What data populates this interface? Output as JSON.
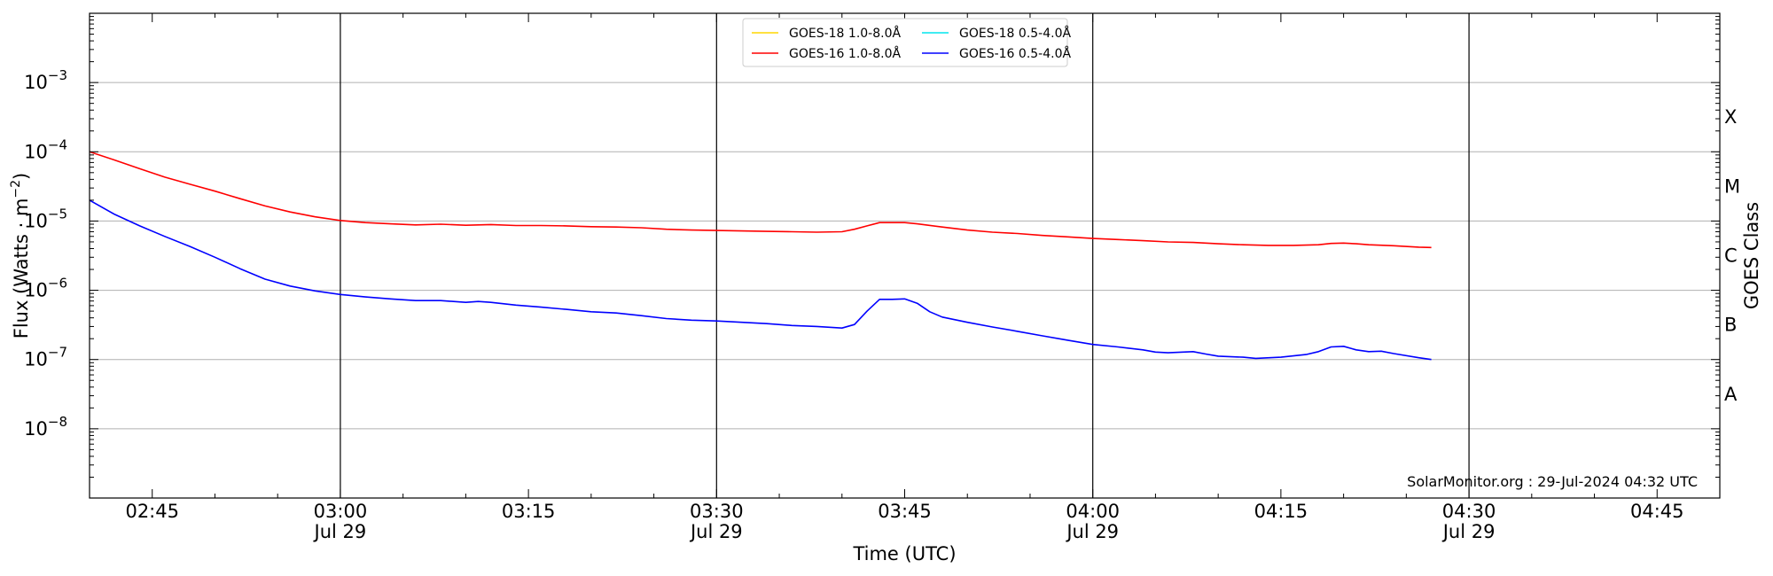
{
  "chart_data": {
    "type": "line",
    "xlabel": "Time (UTC)",
    "ylabel": "Flux (Watts · m",
    "ylabel_sup": "−2",
    "ylabel_close": ")",
    "right_label": "GOES Class",
    "footer": "SolarMonitor.org : 29-Jul-2024 04:32 UTC",
    "y_scale": "log",
    "ylim": [
      1e-09,
      0.01
    ],
    "xlim": [
      "02:40",
      "04:50"
    ],
    "grid": "horizontal",
    "legend_position": "top-center",
    "x_ticks": [
      {
        "time": "02:45",
        "label": "02:45",
        "date": ""
      },
      {
        "time": "03:00",
        "label": "03:00",
        "date": "Jul 29"
      },
      {
        "time": "03:15",
        "label": "03:15",
        "date": ""
      },
      {
        "time": "03:30",
        "label": "03:30",
        "date": "Jul 29"
      },
      {
        "time": "03:45",
        "label": "03:45",
        "date": ""
      },
      {
        "time": "04:00",
        "label": "04:00",
        "date": "Jul 29"
      },
      {
        "time": "04:15",
        "label": "04:15",
        "date": ""
      },
      {
        "time": "04:30",
        "label": "04:30",
        "date": "Jul 29"
      },
      {
        "time": "04:45",
        "label": "04:45",
        "date": ""
      }
    ],
    "vertical_lines": [
      "03:00",
      "03:30",
      "04:00",
      "04:30"
    ],
    "y_ticks": [
      {
        "value": 1e-08,
        "base": "10",
        "exp": "−8"
      },
      {
        "value": 1e-07,
        "base": "10",
        "exp": "−7"
      },
      {
        "value": 1e-06,
        "base": "10",
        "exp": "−6"
      },
      {
        "value": 1e-05,
        "base": "10",
        "exp": "−5"
      },
      {
        "value": 0.0001,
        "base": "10",
        "exp": "−4"
      },
      {
        "value": 0.001,
        "base": "10",
        "exp": "−3"
      }
    ],
    "goes_classes": [
      {
        "label": "A",
        "value": 3.16e-08
      },
      {
        "label": "B",
        "value": 3.16e-07
      },
      {
        "label": "C",
        "value": 3.16e-06
      },
      {
        "label": "M",
        "value": 3.16e-05
      },
      {
        "label": "X",
        "value": 0.000316
      }
    ],
    "legend_entries": [
      {
        "name": "GOES-18 1.0-8.0Å",
        "color": "#ffd700"
      },
      {
        "name": "GOES-18 0.5-4.0Å",
        "color": "#00e5ee"
      },
      {
        "name": "GOES-16 1.0-8.0Å",
        "color": "#ff0000"
      },
      {
        "name": "GOES-16 0.5-4.0Å",
        "color": "#0000ff"
      }
    ],
    "series": [
      {
        "name": "GOES-16 1.0-8.0Å",
        "color": "#ff0000",
        "points": [
          [
            "02:40",
            0.0001
          ],
          [
            "02:42",
            7.6e-05
          ],
          [
            "02:44",
            5.7e-05
          ],
          [
            "02:46",
            4.3e-05
          ],
          [
            "02:48",
            3.4e-05
          ],
          [
            "02:50",
            2.7e-05
          ],
          [
            "02:52",
            2.1e-05
          ],
          [
            "02:54",
            1.65e-05
          ],
          [
            "02:56",
            1.35e-05
          ],
          [
            "02:58",
            1.15e-05
          ],
          [
            "03:00",
            1.02e-05
          ],
          [
            "03:02",
            9.5e-06
          ],
          [
            "03:04",
            9.1e-06
          ],
          [
            "03:06",
            8.8e-06
          ],
          [
            "03:08",
            9e-06
          ],
          [
            "03:10",
            8.7e-06
          ],
          [
            "03:12",
            8.9e-06
          ],
          [
            "03:14",
            8.6e-06
          ],
          [
            "03:16",
            8.6e-06
          ],
          [
            "03:18",
            8.5e-06
          ],
          [
            "03:20",
            8.3e-06
          ],
          [
            "03:22",
            8.2e-06
          ],
          [
            "03:24",
            8e-06
          ],
          [
            "03:26",
            7.6e-06
          ],
          [
            "03:28",
            7.4e-06
          ],
          [
            "03:30",
            7.3e-06
          ],
          [
            "03:32",
            7.2e-06
          ],
          [
            "03:34",
            7.1e-06
          ],
          [
            "03:36",
            7e-06
          ],
          [
            "03:38",
            6.9e-06
          ],
          [
            "03:40",
            7e-06
          ],
          [
            "03:41",
            7.6e-06
          ],
          [
            "03:42",
            8.5e-06
          ],
          [
            "03:43",
            9.5e-06
          ],
          [
            "03:45",
            9.5e-06
          ],
          [
            "03:46",
            9.1e-06
          ],
          [
            "03:48",
            8.2e-06
          ],
          [
            "03:50",
            7.4e-06
          ],
          [
            "03:52",
            6.9e-06
          ],
          [
            "03:54",
            6.6e-06
          ],
          [
            "03:56",
            6.2e-06
          ],
          [
            "03:58",
            5.9e-06
          ],
          [
            "04:00",
            5.6e-06
          ],
          [
            "04:02",
            5.4e-06
          ],
          [
            "04:04",
            5.2e-06
          ],
          [
            "04:06",
            5e-06
          ],
          [
            "04:08",
            4.9e-06
          ],
          [
            "04:10",
            4.7e-06
          ],
          [
            "04:12",
            4.55e-06
          ],
          [
            "04:14",
            4.45e-06
          ],
          [
            "04:16",
            4.45e-06
          ],
          [
            "04:18",
            4.55e-06
          ],
          [
            "04:19",
            4.75e-06
          ],
          [
            "04:20",
            4.8e-06
          ],
          [
            "04:21",
            4.7e-06
          ],
          [
            "04:22",
            4.55e-06
          ],
          [
            "04:24",
            4.4e-06
          ],
          [
            "04:26",
            4.2e-06
          ],
          [
            "04:27",
            4.15e-06
          ]
        ]
      },
      {
        "name": "GOES-16 0.5-4.0Å",
        "color": "#0000ff",
        "points": [
          [
            "02:40",
            2e-05
          ],
          [
            "02:42",
            1.25e-05
          ],
          [
            "02:44",
            8.5e-06
          ],
          [
            "02:46",
            6e-06
          ],
          [
            "02:48",
            4.3e-06
          ],
          [
            "02:50",
            3e-06
          ],
          [
            "02:52",
            2.05e-06
          ],
          [
            "02:54",
            1.45e-06
          ],
          [
            "02:56",
            1.15e-06
          ],
          [
            "02:58",
            9.8e-07
          ],
          [
            "03:00",
            8.7e-07
          ],
          [
            "03:02",
            8e-07
          ],
          [
            "03:04",
            7.5e-07
          ],
          [
            "03:06",
            7.1e-07
          ],
          [
            "03:08",
            7.1e-07
          ],
          [
            "03:10",
            6.7e-07
          ],
          [
            "03:11",
            6.9e-07
          ],
          [
            "03:12",
            6.7e-07
          ],
          [
            "03:14",
            6.1e-07
          ],
          [
            "03:16",
            5.7e-07
          ],
          [
            "03:18",
            5.3e-07
          ],
          [
            "03:20",
            4.9e-07
          ],
          [
            "03:22",
            4.7e-07
          ],
          [
            "03:24",
            4.3e-07
          ],
          [
            "03:26",
            3.9e-07
          ],
          [
            "03:28",
            3.7e-07
          ],
          [
            "03:30",
            3.6e-07
          ],
          [
            "03:32",
            3.45e-07
          ],
          [
            "03:34",
            3.3e-07
          ],
          [
            "03:36",
            3.1e-07
          ],
          [
            "03:38",
            3e-07
          ],
          [
            "03:40",
            2.85e-07
          ],
          [
            "03:41",
            3.2e-07
          ],
          [
            "03:42",
            5e-07
          ],
          [
            "03:43",
            7.4e-07
          ],
          [
            "03:44",
            7.4e-07
          ],
          [
            "03:45",
            7.5e-07
          ],
          [
            "03:46",
            6.5e-07
          ],
          [
            "03:47",
            4.9e-07
          ],
          [
            "03:48",
            4.1e-07
          ],
          [
            "03:50",
            3.45e-07
          ],
          [
            "03:52",
            2.95e-07
          ],
          [
            "03:54",
            2.55e-07
          ],
          [
            "03:56",
            2.2e-07
          ],
          [
            "03:58",
            1.9e-07
          ],
          [
            "04:00",
            1.65e-07
          ],
          [
            "04:02",
            1.52e-07
          ],
          [
            "04:04",
            1.38e-07
          ],
          [
            "04:05",
            1.28e-07
          ],
          [
            "04:06",
            1.25e-07
          ],
          [
            "04:08",
            1.3e-07
          ],
          [
            "04:09",
            1.2e-07
          ],
          [
            "04:10",
            1.12e-07
          ],
          [
            "04:12",
            1.08e-07
          ],
          [
            "04:13",
            1.04e-07
          ],
          [
            "04:15",
            1.08e-07
          ],
          [
            "04:17",
            1.18e-07
          ],
          [
            "04:18",
            1.3e-07
          ],
          [
            "04:19",
            1.52e-07
          ],
          [
            "04:20",
            1.55e-07
          ],
          [
            "04:21",
            1.38e-07
          ],
          [
            "04:22",
            1.3e-07
          ],
          [
            "04:23",
            1.32e-07
          ],
          [
            "04:24",
            1.22e-07
          ],
          [
            "04:26",
            1.06e-07
          ],
          [
            "04:27",
            1e-07
          ]
        ]
      }
    ]
  }
}
